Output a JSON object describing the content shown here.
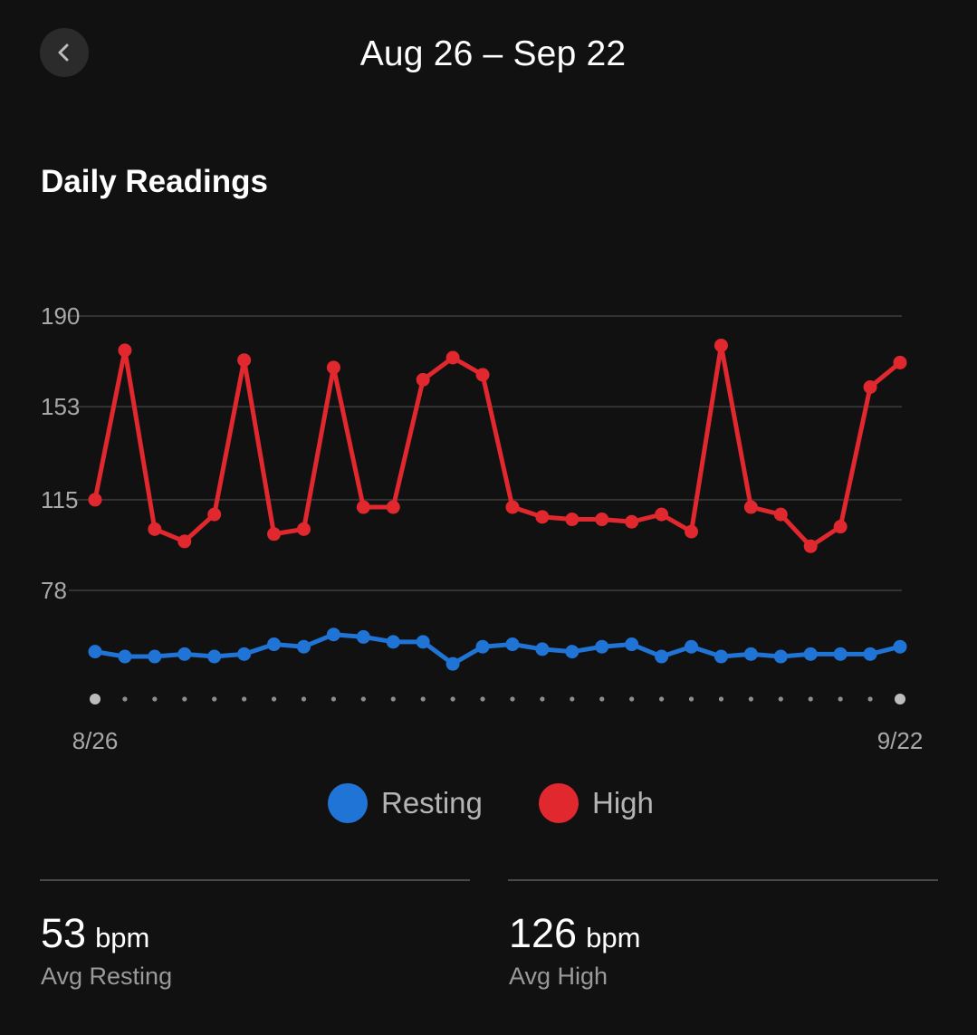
{
  "header": {
    "title": "Aug 26 – Sep 22",
    "back_icon": "chevron-left-icon"
  },
  "section": {
    "title": "Daily Readings"
  },
  "chart_data": {
    "type": "line",
    "title": "",
    "xlabel": "",
    "ylabel": "",
    "x_tick_labels": [
      "8/26",
      "9/22"
    ],
    "y_ticks": [
      78,
      115,
      153,
      190
    ],
    "ylim": [
      40,
      190
    ],
    "grid": true,
    "legend_position": "bottom-center",
    "series": [
      {
        "name": "Resting",
        "color": "#1f74d6",
        "values": [
          53,
          51,
          51,
          52,
          51,
          52,
          56,
          55,
          60,
          59,
          57,
          57,
          48,
          55,
          56,
          54,
          53,
          55,
          56,
          51,
          55,
          51,
          52,
          51,
          52,
          52,
          52,
          55
        ]
      },
      {
        "name": "High",
        "color": "#e0282e",
        "values": [
          115,
          176,
          103,
          98,
          109,
          172,
          101,
          103,
          169,
          112,
          112,
          164,
          173,
          166,
          112,
          108,
          107,
          107,
          106,
          109,
          102,
          178,
          112,
          109,
          96,
          104,
          161,
          171
        ]
      }
    ]
  },
  "legend": {
    "resting_label": "Resting",
    "high_label": "High"
  },
  "stats": {
    "resting": {
      "value": "53",
      "unit": "bpm",
      "label": "Avg Resting"
    },
    "high": {
      "value": "126",
      "unit": "bpm",
      "label": "Avg High"
    }
  }
}
